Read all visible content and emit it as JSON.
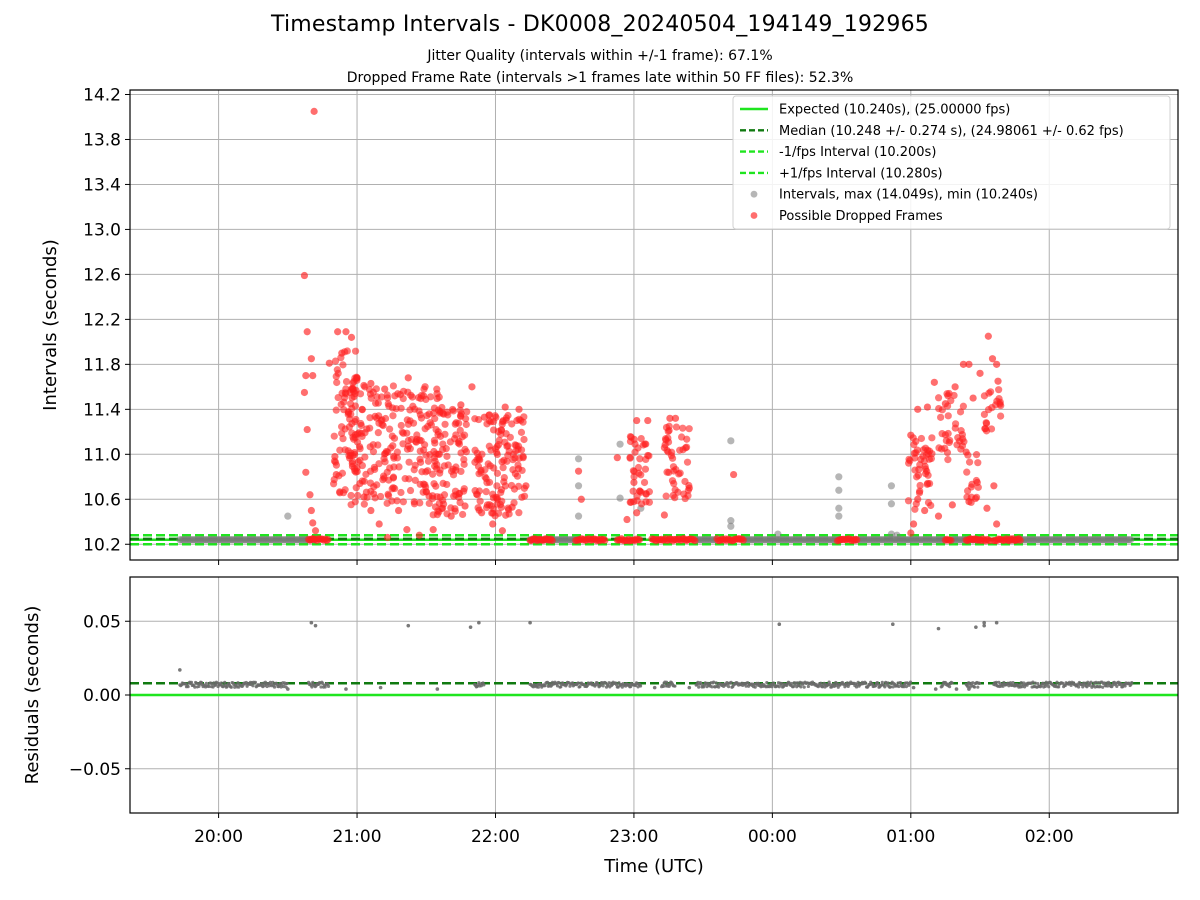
{
  "title": "Timestamp Intervals - DK0008_20240504_194149_192965",
  "subtitle1": "Jitter Quality (intervals within +/-1 frame): 67.1%",
  "subtitle2": "Dropped Frame Rate (intervals >1 frames late within 50 FF files): 52.3%",
  "colors": {
    "expected": "#1fe51f",
    "median": "#107a10",
    "interval_band": "#1fe51f",
    "intervals": "#7a7a7a",
    "dropped": "#ff2020"
  },
  "chart_data": [
    {
      "type": "scatter",
      "panel": "top",
      "title": "",
      "xlabel": "",
      "ylabel": "Intervals (seconds)",
      "x_tick_labels": [
        "20:00",
        "21:00",
        "22:00",
        "23:00",
        "00:00",
        "01:00",
        "02:00"
      ],
      "x_range_hours": [
        19.36,
        26.93
      ],
      "x_ticks_hours": [
        20,
        21,
        22,
        23,
        24,
        25,
        26
      ],
      "ylim": [
        10.06,
        14.24
      ],
      "y_tick_labels": [
        "10.2",
        "10.6",
        "11.0",
        "11.4",
        "11.8",
        "12.2",
        "12.6",
        "13.0",
        "13.4",
        "13.8",
        "14.2"
      ],
      "y_ticks": [
        10.2,
        10.6,
        11.0,
        11.4,
        11.8,
        12.2,
        12.6,
        13.0,
        13.4,
        13.8,
        14.2
      ],
      "grid": true,
      "legend_position": "top-right",
      "legend": [
        "Expected (10.240s), (25.00000 fps)",
        "Median (10.248 +/- 0.274 s), (24.98061 +/- 0.62 fps)",
        "-1/fps Interval (10.200s)",
        "+1/fps Interval (10.280s)",
        "Intervals, max (14.049s), min (10.240s)",
        "Possible Dropped Frames"
      ],
      "reference_lines": {
        "expected": 10.24,
        "median": 10.248,
        "minus_interval": 10.2,
        "plus_interval": 10.28
      },
      "baseline_x_range_hours": [
        19.72,
        26.6
      ],
      "baseline_value": 10.24,
      "baseline_gray_segments_hours": [
        [
          19.72,
          20.7
        ],
        [
          22.25,
          22.6
        ],
        [
          23.45,
          23.6
        ],
        [
          23.8,
          24.5
        ],
        [
          24.6,
          25.25
        ],
        [
          25.3,
          25.5
        ],
        [
          25.7,
          26.6
        ]
      ],
      "baseline_red_segments_hours": [
        [
          20.65,
          20.8
        ],
        [
          22.25,
          22.42
        ],
        [
          22.58,
          22.8
        ],
        [
          22.88,
          23.05
        ],
        [
          23.13,
          23.45
        ],
        [
          23.6,
          23.8
        ],
        [
          24.47,
          24.62
        ],
        [
          25.25,
          25.3
        ],
        [
          25.4,
          25.58
        ],
        [
          25.6,
          25.8
        ]
      ],
      "gray_points": [
        {
          "x": 20.5,
          "y": 10.45
        },
        {
          "x": 22.6,
          "y": 10.96
        },
        {
          "x": 22.6,
          "y": 10.72
        },
        {
          "x": 22.6,
          "y": 10.45
        },
        {
          "x": 22.9,
          "y": 11.09
        },
        {
          "x": 22.9,
          "y": 10.61
        },
        {
          "x": 23.05,
          "y": 10.52
        },
        {
          "x": 23.7,
          "y": 11.12
        },
        {
          "x": 23.7,
          "y": 10.41
        },
        {
          "x": 23.7,
          "y": 10.36
        },
        {
          "x": 24.48,
          "y": 10.8
        },
        {
          "x": 24.48,
          "y": 10.68
        },
        {
          "x": 24.48,
          "y": 10.52
        },
        {
          "x": 24.48,
          "y": 10.45
        },
        {
          "x": 24.86,
          "y": 10.72
        },
        {
          "x": 24.86,
          "y": 10.56
        },
        {
          "x": 24.86,
          "y": 10.29
        },
        {
          "x": 24.04,
          "y": 10.29
        },
        {
          "x": 24.9,
          "y": 10.28
        }
      ],
      "dropped_frame_points": [
        {
          "x": 20.69,
          "y": 14.05
        },
        {
          "x": 20.62,
          "y": 12.59
        },
        {
          "x": 20.64,
          "y": 12.09
        },
        {
          "x": 20.63,
          "y": 11.7
        },
        {
          "x": 20.62,
          "y": 11.55
        },
        {
          "x": 20.67,
          "y": 11.85
        },
        {
          "x": 20.64,
          "y": 11.22
        },
        {
          "x": 20.63,
          "y": 10.84
        },
        {
          "x": 20.66,
          "y": 10.64
        },
        {
          "x": 20.67,
          "y": 10.5
        },
        {
          "x": 20.68,
          "y": 10.39
        },
        {
          "x": 20.7,
          "y": 10.32
        },
        {
          "x": 20.68,
          "y": 11.7
        },
        {
          "x": 21.37,
          "y": 11.68
        },
        {
          "x": 21.83,
          "y": 11.6
        },
        {
          "x": 20.8,
          "y": 11.81
        },
        {
          "x": 20.86,
          "y": 12.09
        },
        {
          "x": 20.92,
          "y": 12.09
        },
        {
          "x": 20.96,
          "y": 12.04
        },
        {
          "x": 20.89,
          "y": 11.9
        },
        {
          "x": 20.85,
          "y": 10.82
        },
        {
          "x": 20.84,
          "y": 10.98
        },
        {
          "x": 21.0,
          "y": 10.88
        },
        {
          "x": 21.02,
          "y": 10.74
        },
        {
          "x": 21.05,
          "y": 10.62
        },
        {
          "x": 21.1,
          "y": 10.5
        },
        {
          "x": 21.16,
          "y": 10.38
        },
        {
          "x": 21.22,
          "y": 10.26
        },
        {
          "x": 21.3,
          "y": 10.5
        },
        {
          "x": 21.36,
          "y": 10.33
        },
        {
          "x": 21.45,
          "y": 10.28
        },
        {
          "x": 21.55,
          "y": 10.33
        },
        {
          "x": 21.68,
          "y": 10.45
        },
        {
          "x": 21.78,
          "y": 10.54
        },
        {
          "x": 21.9,
          "y": 10.48
        },
        {
          "x": 21.98,
          "y": 10.38
        },
        {
          "x": 22.05,
          "y": 10.32
        },
        {
          "x": 22.12,
          "y": 10.53
        },
        {
          "x": 22.17,
          "y": 11.4
        },
        {
          "x": 22.07,
          "y": 11.42
        },
        {
          "x": 21.92,
          "y": 11.33
        },
        {
          "x": 21.75,
          "y": 11.44
        },
        {
          "x": 21.6,
          "y": 11.38
        },
        {
          "x": 21.48,
          "y": 11.52
        },
        {
          "x": 21.2,
          "y": 11.58
        },
        {
          "x": 21.1,
          "y": 11.63
        },
        {
          "x": 21.0,
          "y": 11.68
        },
        {
          "x": 22.2,
          "y": 10.97
        },
        {
          "x": 22.22,
          "y": 10.72
        },
        {
          "x": 23.02,
          "y": 11.3
        },
        {
          "x": 23.1,
          "y": 11.3
        },
        {
          "x": 23.26,
          "y": 11.32
        },
        {
          "x": 23.3,
          "y": 11.32
        },
        {
          "x": 22.6,
          "y": 10.85
        },
        {
          "x": 22.62,
          "y": 10.6
        },
        {
          "x": 22.88,
          "y": 10.97
        },
        {
          "x": 22.95,
          "y": 10.42
        },
        {
          "x": 23.72,
          "y": 10.82
        },
        {
          "x": 23.0,
          "y": 10.75
        },
        {
          "x": 23.02,
          "y": 10.48
        },
        {
          "x": 23.4,
          "y": 10.7
        },
        {
          "x": 23.22,
          "y": 10.46
        },
        {
          "x": 25.0,
          "y": 10.3
        },
        {
          "x": 25.0,
          "y": 11.17
        },
        {
          "x": 25.05,
          "y": 11.4
        },
        {
          "x": 25.12,
          "y": 11.42
        },
        {
          "x": 25.17,
          "y": 11.64
        },
        {
          "x": 25.25,
          "y": 11.45
        },
        {
          "x": 25.32,
          "y": 11.6
        },
        {
          "x": 25.38,
          "y": 11.8
        },
        {
          "x": 25.42,
          "y": 11.8
        },
        {
          "x": 25.5,
          "y": 11.72
        },
        {
          "x": 25.56,
          "y": 12.05
        },
        {
          "x": 25.59,
          "y": 11.85
        },
        {
          "x": 25.62,
          "y": 11.8
        },
        {
          "x": 25.63,
          "y": 11.65
        },
        {
          "x": 25.62,
          "y": 10.38
        },
        {
          "x": 25.6,
          "y": 10.72
        },
        {
          "x": 25.55,
          "y": 10.52
        },
        {
          "x": 25.48,
          "y": 10.75
        },
        {
          "x": 25.42,
          "y": 10.58
        },
        {
          "x": 25.3,
          "y": 10.55
        },
        {
          "x": 25.2,
          "y": 10.45
        },
        {
          "x": 25.1,
          "y": 10.5
        },
        {
          "x": 25.02,
          "y": 10.38
        },
        {
          "x": 25.05,
          "y": 10.6
        },
        {
          "x": 25.4,
          "y": 11.02
        },
        {
          "x": 25.45,
          "y": 11.5
        }
      ],
      "dropped_frame_clusters": [
        {
          "x_range_hours": [
            20.83,
            21.0
          ],
          "y_range": [
            10.6,
            11.95
          ],
          "count": 70
        },
        {
          "x_range_hours": [
            20.95,
            21.6
          ],
          "y_range": [
            10.55,
            11.62
          ],
          "count": 220
        },
        {
          "x_range_hours": [
            21.55,
            21.8
          ],
          "y_range": [
            10.45,
            11.42
          ],
          "count": 90
        },
        {
          "x_range_hours": [
            21.85,
            22.22
          ],
          "y_range": [
            10.45,
            11.38
          ],
          "count": 130
        },
        {
          "x_range_hours": [
            22.97,
            23.12
          ],
          "y_range": [
            10.55,
            11.2
          ],
          "count": 40
        },
        {
          "x_range_hours": [
            23.22,
            23.4
          ],
          "y_range": [
            10.55,
            11.25
          ],
          "count": 45
        },
        {
          "x_range_hours": [
            24.98,
            25.17
          ],
          "y_range": [
            10.5,
            11.15
          ],
          "count": 45
        },
        {
          "x_range_hours": [
            25.2,
            25.4
          ],
          "y_range": [
            10.95,
            11.55
          ],
          "count": 35
        },
        {
          "x_range_hours": [
            25.4,
            25.5
          ],
          "y_range": [
            10.55,
            11.05
          ],
          "count": 15
        },
        {
          "x_range_hours": [
            25.53,
            25.65
          ],
          "y_range": [
            11.15,
            11.6
          ],
          "count": 20
        }
      ]
    },
    {
      "type": "scatter",
      "panel": "bottom",
      "title": "",
      "xlabel": "Time (UTC)",
      "ylabel": "Residuals (seconds)",
      "x_tick_labels": [
        "20:00",
        "21:00",
        "22:00",
        "23:00",
        "00:00",
        "01:00",
        "02:00"
      ],
      "x_range_hours": [
        19.36,
        26.93
      ],
      "x_ticks_hours": [
        20,
        21,
        22,
        23,
        24,
        25,
        26
      ],
      "ylim": [
        -0.08,
        0.08
      ],
      "y_tick_labels": [
        "0.05",
        "0.00",
        "−0.05"
      ],
      "y_ticks": [
        0.05,
        0.0,
        -0.05
      ],
      "grid": true,
      "reference_lines": {
        "expected": 0.0,
        "median": 0.008
      },
      "baseline_residual": 0.007,
      "baseline_segments_hours": [
        [
          19.72,
          20.5
        ],
        [
          20.65,
          20.8
        ],
        [
          21.85,
          21.92
        ],
        [
          22.25,
          23.05
        ],
        [
          23.2,
          23.3
        ],
        [
          23.45,
          25.0
        ],
        [
          25.22,
          25.3
        ],
        [
          25.4,
          25.5
        ],
        [
          25.6,
          26.6
        ]
      ],
      "residual_points": [
        {
          "x": 19.72,
          "y": 0.017
        },
        {
          "x": 20.67,
          "y": 0.049
        },
        {
          "x": 20.7,
          "y": 0.047
        },
        {
          "x": 21.37,
          "y": 0.047
        },
        {
          "x": 21.82,
          "y": 0.046
        },
        {
          "x": 21.88,
          "y": 0.049
        },
        {
          "x": 22.25,
          "y": 0.049
        },
        {
          "x": 24.05,
          "y": 0.048
        },
        {
          "x": 24.87,
          "y": 0.048
        },
        {
          "x": 25.2,
          "y": 0.045
        },
        {
          "x": 25.47,
          "y": 0.046
        },
        {
          "x": 25.53,
          "y": 0.049
        },
        {
          "x": 25.53,
          "y": 0.047
        },
        {
          "x": 25.62,
          "y": 0.049
        },
        {
          "x": 20.5,
          "y": 0.004
        },
        {
          "x": 20.92,
          "y": 0.004
        },
        {
          "x": 21.17,
          "y": 0.005
        },
        {
          "x": 21.58,
          "y": 0.004
        },
        {
          "x": 25.02,
          "y": 0.005
        },
        {
          "x": 25.18,
          "y": 0.004
        },
        {
          "x": 25.33,
          "y": 0.004
        },
        {
          "x": 25.42,
          "y": 0.004
        },
        {
          "x": 23.15,
          "y": 0.005
        },
        {
          "x": 23.4,
          "y": 0.005
        }
      ]
    }
  ]
}
